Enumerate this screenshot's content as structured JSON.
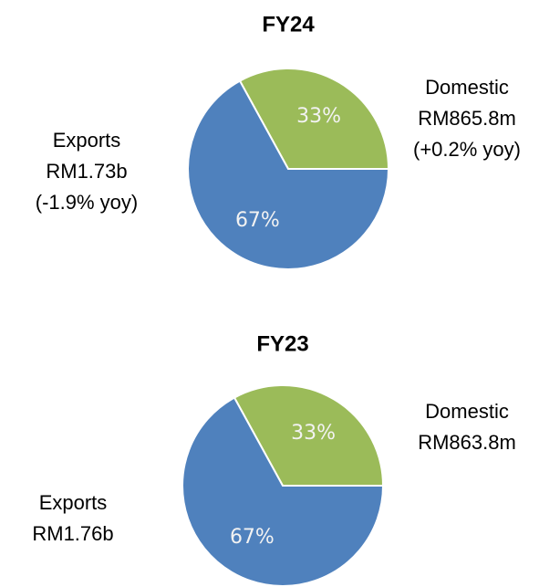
{
  "chart_data": [
    {
      "type": "pie",
      "title": "FY24",
      "categories": [
        "Domestic",
        "Exports"
      ],
      "values": [
        33,
        67
      ],
      "value_labels": [
        "33%",
        "67%"
      ],
      "colors": [
        "#9bbb59",
        "#4f81bd"
      ],
      "annotations": [
        [
          "RM865.8m",
          "(+0.2% yoy)"
        ],
        [
          "RM1.73b",
          "(-1.9% yoy)"
        ]
      ]
    },
    {
      "type": "pie",
      "title": "FY23",
      "categories": [
        "Domestic",
        "Exports"
      ],
      "values": [
        33,
        67
      ],
      "value_labels": [
        "33%",
        "67%"
      ],
      "colors": [
        "#9bbb59",
        "#4f81bd"
      ],
      "annotations": [
        [
          "RM863.8m"
        ],
        [
          "RM1.76b"
        ]
      ]
    }
  ]
}
